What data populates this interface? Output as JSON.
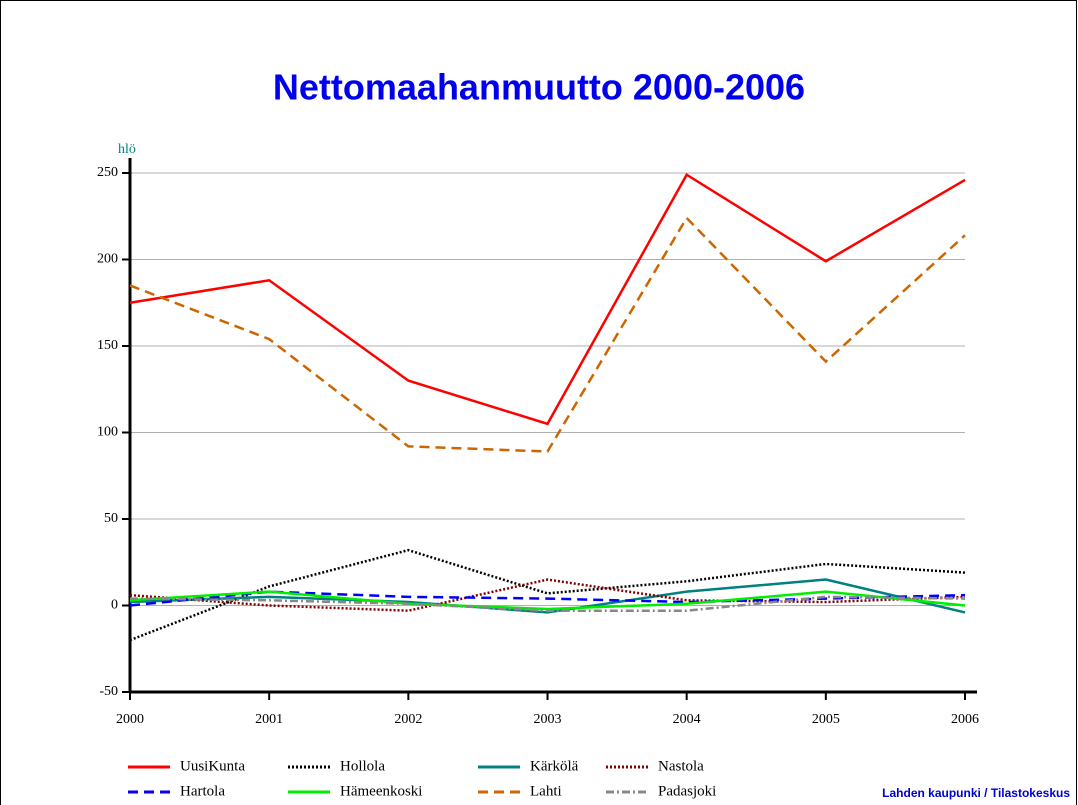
{
  "chart_data": {
    "type": "line",
    "title": "Nettomaahanmuutto 2000-2006",
    "y_label": "hlö",
    "source": "Lahden kaupunki / Tilastokeskus",
    "categories": [
      "2000",
      "2001",
      "2002",
      "2003",
      "2004",
      "2005",
      "2006"
    ],
    "ylim": [
      -50,
      250
    ],
    "yticks": [
      -50,
      0,
      50,
      100,
      150,
      200,
      250
    ],
    "grid": true,
    "series": [
      {
        "name": "UusiKunta",
        "color": "#ff0000",
        "style": "solid",
        "values": [
          175,
          188,
          130,
          105,
          249,
          199,
          246
        ]
      },
      {
        "name": "Hollola",
        "color": "#000000",
        "style": "dotted",
        "values": [
          -20,
          11,
          32,
          7,
          14,
          24,
          19
        ]
      },
      {
        "name": "Kärkölä",
        "color": "#008080",
        "style": "solid",
        "values": [
          2,
          5,
          2,
          -4,
          8,
          15,
          -4
        ]
      },
      {
        "name": "Nastola",
        "color": "#800000",
        "style": "dotted",
        "values": [
          6,
          0,
          -3,
          15,
          3,
          2,
          5
        ]
      },
      {
        "name": "Hartola",
        "color": "#0000ff",
        "style": "dashed",
        "values": [
          0,
          8,
          5,
          4,
          2,
          4,
          6
        ]
      },
      {
        "name": "Hämeenkoski",
        "color": "#00ee00",
        "style": "solid",
        "values": [
          3,
          8,
          1,
          -2,
          1,
          8,
          0
        ]
      },
      {
        "name": "Lahti",
        "color": "#cc6600",
        "style": "dashed",
        "values": [
          185,
          154,
          92,
          89,
          224,
          141,
          214
        ]
      },
      {
        "name": "Padasjoki",
        "color": "#888888",
        "style": "dashdot",
        "values": [
          4,
          3,
          1,
          -3,
          -3,
          5,
          4
        ]
      }
    ]
  }
}
